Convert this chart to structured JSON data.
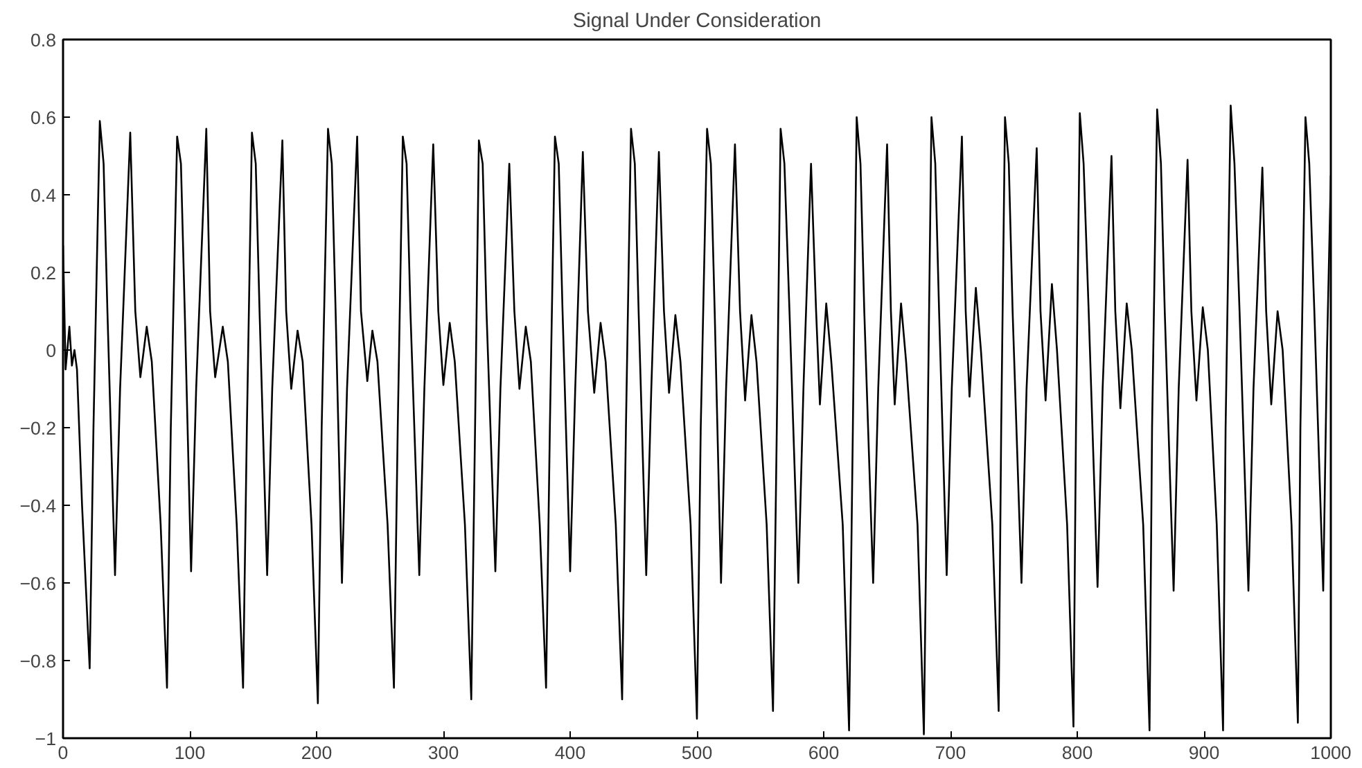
{
  "chart_data": {
    "type": "line",
    "title": "Signal Under Consideration",
    "x": [
      0,
      2,
      5,
      7,
      9,
      11,
      15,
      21,
      24,
      29,
      32,
      35,
      41,
      45,
      53,
      57,
      61,
      66,
      70,
      77,
      82,
      85,
      90,
      93,
      96,
      101,
      105,
      113,
      116,
      120,
      126,
      130,
      137,
      142,
      145,
      149,
      152,
      155,
      161,
      165,
      173,
      176,
      180,
      185,
      189,
      196,
      201,
      204,
      209,
      212,
      215,
      220,
      224,
      232,
      235,
      240,
      244,
      248,
      256,
      261,
      264,
      268,
      271,
      274,
      281,
      285,
      292,
      296,
      300,
      305,
      309,
      317,
      322,
      325,
      328,
      331,
      334,
      341,
      345,
      352,
      356,
      360,
      365,
      369,
      376,
      381,
      384,
      388,
      391,
      394,
      400,
      404,
      410,
      414,
      419,
      424,
      428,
      436,
      441,
      444,
      448,
      451,
      454,
      460,
      464,
      470,
      474,
      478,
      483,
      487,
      495,
      500,
      503,
      508,
      511,
      514,
      519,
      523,
      530,
      534,
      538,
      543,
      547,
      555,
      560,
      563,
      566,
      569,
      573,
      580,
      584,
      590,
      594,
      597,
      602,
      606,
      615,
      620,
      623,
      626,
      629,
      632,
      639,
      643,
      650,
      653,
      656,
      661,
      665,
      674,
      679,
      682,
      685,
      688,
      691,
      697,
      701,
      709,
      712,
      715,
      720,
      724,
      733,
      738,
      740,
      743,
      746,
      749,
      756,
      760,
      768,
      771,
      775,
      780,
      784,
      792,
      797,
      799,
      802,
      805,
      809,
      816,
      820,
      827,
      830,
      834,
      839,
      843,
      852,
      857,
      859,
      863,
      866,
      869,
      876,
      880,
      887,
      890,
      894,
      899,
      903,
      910,
      915,
      917,
      921,
      924,
      928,
      935,
      939,
      946,
      949,
      953,
      958,
      962,
      969,
      974,
      976,
      980,
      983,
      987,
      994,
      997,
      1000
    ],
    "series": [
      {
        "color": "#000000",
        "values": [
          0.27,
          -0.05,
          0.06,
          -0.04,
          0.0,
          -0.05,
          -0.4,
          -0.82,
          -0.2,
          0.59,
          0.48,
          0.1,
          -0.58,
          -0.1,
          0.56,
          0.1,
          -0.07,
          0.06,
          -0.03,
          -0.45,
          -0.87,
          -0.2,
          0.55,
          0.48,
          0.1,
          -0.57,
          -0.1,
          0.57,
          0.1,
          -0.07,
          0.06,
          -0.03,
          -0.45,
          -0.87,
          -0.2,
          0.56,
          0.48,
          0.1,
          -0.58,
          -0.1,
          0.54,
          0.1,
          -0.1,
          0.05,
          -0.03,
          -0.45,
          -0.91,
          -0.2,
          0.57,
          0.48,
          0.1,
          -0.6,
          -0.1,
          0.55,
          0.1,
          -0.08,
          0.05,
          -0.03,
          -0.45,
          -0.87,
          -0.2,
          0.55,
          0.48,
          0.1,
          -0.58,
          -0.1,
          0.53,
          0.1,
          -0.09,
          0.07,
          -0.03,
          -0.45,
          -0.9,
          -0.2,
          0.54,
          0.48,
          0.1,
          -0.57,
          -0.1,
          0.48,
          0.1,
          -0.1,
          0.06,
          -0.03,
          -0.45,
          -0.87,
          -0.2,
          0.55,
          0.48,
          0.1,
          -0.57,
          -0.1,
          0.51,
          0.1,
          -0.11,
          0.07,
          -0.03,
          -0.45,
          -0.9,
          -0.2,
          0.57,
          0.48,
          0.1,
          -0.58,
          -0.1,
          0.51,
          0.1,
          -0.11,
          0.09,
          -0.03,
          -0.45,
          -0.95,
          -0.2,
          0.57,
          0.48,
          0.1,
          -0.6,
          -0.1,
          0.53,
          0.1,
          -0.13,
          0.09,
          -0.03,
          -0.45,
          -0.93,
          -0.2,
          0.57,
          0.48,
          0.1,
          -0.6,
          -0.1,
          0.48,
          0.1,
          -0.14,
          0.12,
          -0.03,
          -0.45,
          -0.98,
          -0.2,
          0.6,
          0.48,
          0.1,
          -0.6,
          -0.1,
          0.53,
          0.1,
          -0.14,
          0.12,
          -0.03,
          -0.45,
          -0.99,
          -0.2,
          0.6,
          0.48,
          0.1,
          -0.58,
          -0.1,
          0.55,
          0.1,
          -0.12,
          0.16,
          0.0,
          -0.45,
          -0.93,
          -0.2,
          0.6,
          0.48,
          0.1,
          -0.6,
          -0.1,
          0.52,
          0.1,
          -0.13,
          0.17,
          0.0,
          -0.45,
          -0.97,
          -0.2,
          0.61,
          0.48,
          0.1,
          -0.61,
          -0.1,
          0.5,
          0.1,
          -0.15,
          0.12,
          0.0,
          -0.45,
          -0.98,
          -0.2,
          0.62,
          0.48,
          0.1,
          -0.62,
          -0.1,
          0.49,
          0.1,
          -0.13,
          0.11,
          0.0,
          -0.45,
          -0.98,
          -0.2,
          0.63,
          0.48,
          0.1,
          -0.62,
          -0.1,
          0.47,
          0.1,
          -0.14,
          0.1,
          0.0,
          -0.45,
          -0.96,
          -0.2,
          0.6,
          0.48,
          0.1,
          -0.62,
          0.0,
          0.45
        ]
      }
    ],
    "xlim": [
      0,
      1000
    ],
    "ylim": [
      -1,
      0.8
    ],
    "xticks": [
      0,
      100,
      200,
      300,
      400,
      500,
      600,
      700,
      800,
      900,
      1000
    ],
    "yticks": [
      {
        "value": -1,
        "label": "−1"
      },
      {
        "value": -0.8,
        "label": "−0.8"
      },
      {
        "value": -0.6,
        "label": "−0.6"
      },
      {
        "value": -0.4,
        "label": "−0.4"
      },
      {
        "value": -0.2,
        "label": "−0.2"
      },
      0,
      0.2,
      0.4,
      0.6,
      0.8
    ],
    "grid": false
  }
}
